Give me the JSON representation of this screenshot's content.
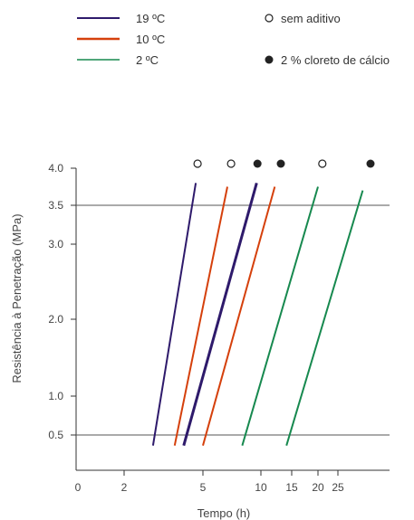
{
  "chart_data": {
    "type": "line",
    "xlabel": "Tempo (h)",
    "ylabel": "Resistência à Penetração (MPa)",
    "x_scale": "log",
    "x_ticks": [
      "0",
      "2",
      "5",
      "10",
      "15",
      "20",
      "25"
    ],
    "y_ticks": [
      "0.5",
      "1.0",
      "2.0",
      "3.0",
      "3.5",
      "4.0"
    ],
    "reference_lines": [
      0.5,
      3.5
    ],
    "legend": {
      "temperatures": [
        {
          "label": "19 ºC",
          "color": "#2e1a6b"
        },
        {
          "label": "10 ºC",
          "color": "#d5400c"
        },
        {
          "label": "2 ºC",
          "color": "#17894f"
        }
      ],
      "markers": [
        {
          "label": "sem aditivo",
          "marker": "open-circle"
        },
        {
          "label": "2 % cloreto de cálcio",
          "marker": "filled-circle"
        }
      ]
    },
    "series": [
      {
        "temperature": "19 ºC",
        "additive": "sem aditivo",
        "x": [
          2.8,
          4.6
        ],
        "y": [
          0.35,
          3.8
        ],
        "color": "#2e1a6b"
      },
      {
        "temperature": "10 ºC",
        "additive": "sem aditivo",
        "x": [
          3.6,
          6.7
        ],
        "y": [
          0.35,
          3.75
        ],
        "color": "#d5400c"
      },
      {
        "temperature": "19 ºC",
        "additive": "2 % cloreto de cálcio",
        "x": [
          4.0,
          9.5
        ],
        "y": [
          0.35,
          3.8
        ],
        "color": "#2e1a6b"
      },
      {
        "temperature": "10 ºC",
        "additive": "2 % cloreto de cálcio",
        "x": [
          5.0,
          12.0
        ],
        "y": [
          0.35,
          3.75
        ],
        "color": "#d5400c"
      },
      {
        "temperature": "2 ºC",
        "additive": "sem aditivo",
        "x": [
          8.0,
          20.0
        ],
        "y": [
          0.35,
          3.75
        ],
        "color": "#17894f"
      },
      {
        "temperature": "2 ºC",
        "additive": "2 % cloreto de cálcio",
        "x": [
          14.0,
          33.0
        ],
        "y": [
          0.35,
          3.7
        ],
        "color": "#17894f"
      }
    ],
    "top_markers": [
      {
        "x": 4.7,
        "marker": "open"
      },
      {
        "x": 7.0,
        "marker": "open"
      },
      {
        "x": 9.6,
        "marker": "filled"
      },
      {
        "x": 13.0,
        "marker": "filled"
      },
      {
        "x": 21.0,
        "marker": "open"
      },
      {
        "x": 36.0,
        "marker": "filled"
      }
    ]
  }
}
